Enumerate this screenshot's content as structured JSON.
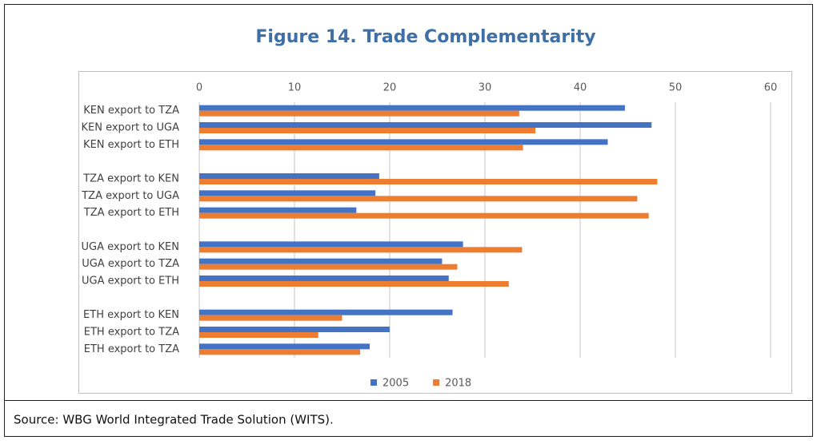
{
  "chart_data": {
    "type": "hbar",
    "title": "Figure 14. Trade Complementarity",
    "categories": [
      "KEN export to TZA",
      "KEN export to UGA",
      "KEN export to ETH",
      null,
      "TZA export to KEN",
      "TZA export to UGA",
      "TZA export to ETH",
      null,
      "UGA export to KEN",
      "UGA export to TZA",
      "UGA export to ETH",
      null,
      "ETH export to KEN",
      "ETH export to TZA",
      "ETH export to TZA"
    ],
    "series": [
      {
        "name": "2005",
        "color": "#4472c4",
        "values": [
          44.7,
          47.5,
          42.9,
          null,
          18.9,
          18.5,
          16.5,
          null,
          27.7,
          25.5,
          26.2,
          null,
          26.6,
          20,
          17.9
        ]
      },
      {
        "name": "2018",
        "color": "#ed7d31",
        "values": [
          33.6,
          35.3,
          34,
          null,
          48.1,
          46,
          47.2,
          null,
          33.9,
          27.1,
          32.5,
          null,
          15,
          12.5,
          16.9
        ]
      }
    ],
    "xlim": [
      0,
      60
    ],
    "xticks": [
      0,
      10,
      20,
      30,
      40,
      50,
      60
    ],
    "grid": true,
    "legend": "bottom"
  },
  "source": "Source: WBG World Integrated Trade Solution (WITS)."
}
